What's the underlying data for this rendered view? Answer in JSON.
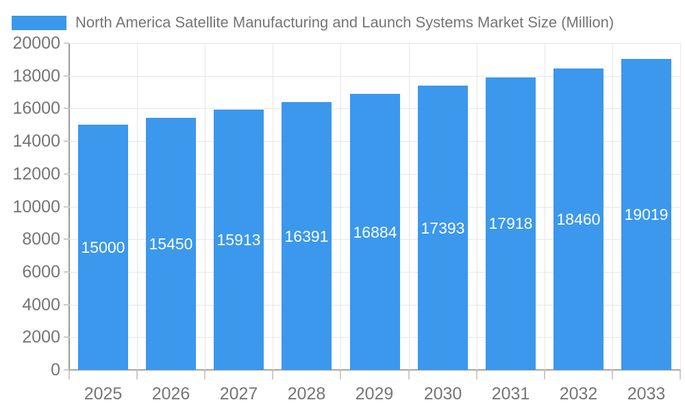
{
  "legend": {
    "label": "North America Satellite Manufacturing and Launch Systems Market Size (Million)"
  },
  "colors": {
    "bar": "#3B98EC",
    "grid": "#E6E6E6",
    "axis": "#999999",
    "tick_mark": "#CCCCCC",
    "text": "#757575",
    "value_label": "#FFFFFF",
    "background": "#FFFFFF"
  },
  "chart_data": {
    "type": "bar",
    "title": "North America Satellite Manufacturing and Launch Systems Market Size (Million)",
    "categories": [
      "2025",
      "2026",
      "2027",
      "2028",
      "2029",
      "2030",
      "2031",
      "2032",
      "2033"
    ],
    "values": [
      15000,
      15450,
      15913,
      16391,
      16884,
      17393,
      17918,
      18460,
      19019
    ],
    "xlabel": "",
    "ylabel": "",
    "ylim": [
      0,
      20000
    ],
    "ytick_step": 2000,
    "ytick_labels": [
      "0",
      "2000",
      "4000",
      "6000",
      "8000",
      "10000",
      "12000",
      "14000",
      "16000",
      "18000",
      "20000"
    ],
    "grid": true,
    "legend_position": "top-left",
    "value_label_position": "inside-middle",
    "bar_color": "#3B98EC"
  }
}
